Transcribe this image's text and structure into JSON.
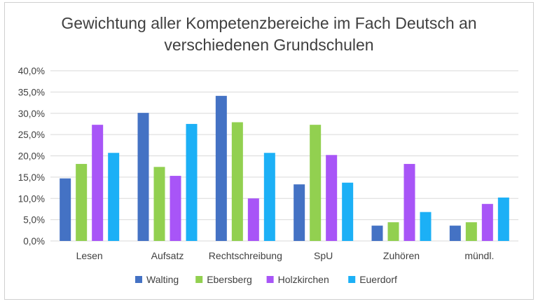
{
  "chart_data": {
    "type": "bar",
    "title_lines": [
      "Gewichtung aller Kompetenzbereiche im Fach Deutsch an",
      "verschiedenen Grundschulen"
    ],
    "categories": [
      "Lesen",
      "Aufsatz",
      "Rechtschreibung",
      "SpU",
      "Zuhören",
      "mündl."
    ],
    "series": [
      {
        "name": "Walting",
        "color": "#4472c4",
        "values": [
          14.7,
          30.1,
          34.1,
          13.3,
          3.6,
          3.6
        ]
      },
      {
        "name": "Ebersberg",
        "color": "#92d050",
        "values": [
          18.1,
          17.4,
          27.9,
          27.3,
          4.4,
          4.4
        ]
      },
      {
        "name": "Holzkirchen",
        "color": "#a855f7",
        "values": [
          27.3,
          15.3,
          10.0,
          20.2,
          18.1,
          8.7
        ]
      },
      {
        "name": "Euerdorf",
        "color": "#1cb0f6",
        "values": [
          20.7,
          27.5,
          20.7,
          13.7,
          6.8,
          10.2
        ]
      }
    ],
    "ylim": [
      0,
      40
    ],
    "yticks": [
      "0,0%",
      "5,0%",
      "10,0%",
      "15,0%",
      "20,0%",
      "25,0%",
      "30,0%",
      "35,0%",
      "40,0%"
    ],
    "grid": true,
    "legend": "bottom"
  }
}
